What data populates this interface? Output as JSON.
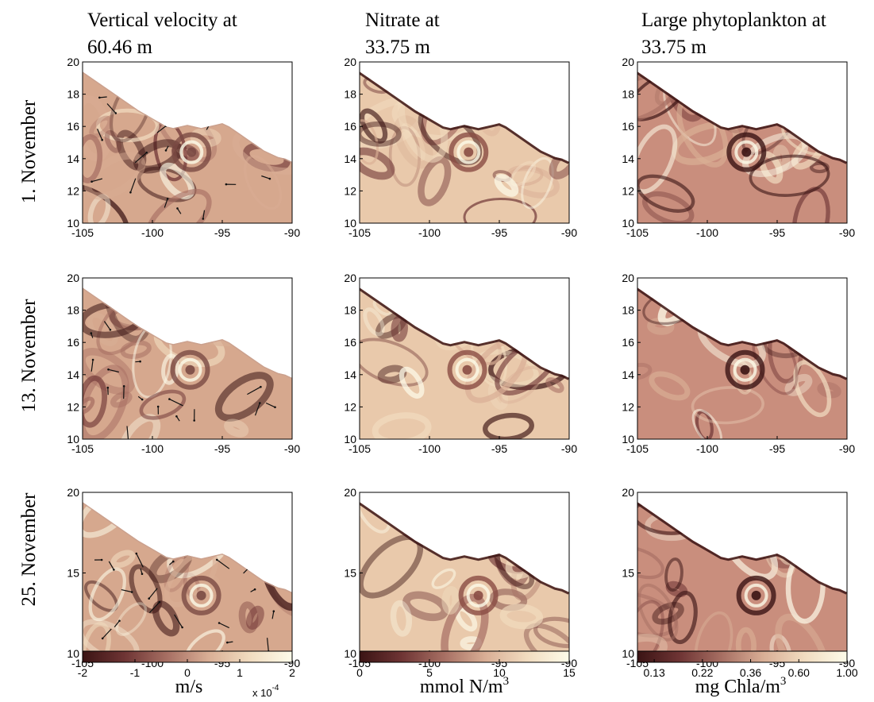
{
  "figure": {
    "columns": [
      {
        "title_line1": "Vertical velocity at",
        "title_line2": "60.46 m",
        "variable": "vertical_velocity",
        "depth_m": 60.46
      },
      {
        "title_line1": "Nitrate at",
        "title_line2": "33.75 m",
        "variable": "nitrate",
        "depth_m": 33.75
      },
      {
        "title_line1": "Large phytoplankton at",
        "title_line2": "33.75 m",
        "variable": "large_phytoplankton",
        "depth_m": 33.75
      }
    ],
    "rows": [
      "1. November",
      "13. November",
      "25. November"
    ],
    "colorbars": [
      {
        "label": "m/s",
        "ticks": [
          "-2",
          "-1",
          "0",
          "1",
          "2"
        ],
        "multiplier_base": "x 10",
        "multiplier_exp": "-4",
        "range": [
          -2,
          2
        ]
      },
      {
        "label_main": "mmol N/m",
        "label_sup": "3",
        "ticks": [
          "0",
          "5",
          "10",
          "15"
        ],
        "range": [
          0,
          15
        ]
      },
      {
        "label_main": "mg Chla/m",
        "label_sup": "3",
        "ticks": [
          "0.13",
          "0.22",
          "0.36",
          "0.60",
          "1.00"
        ],
        "scale": "log"
      }
    ],
    "colormap": [
      "#3b1414",
      "#6e3434",
      "#a66e62",
      "#d9ae95",
      "#f1dcc0",
      "#fdfbe9"
    ]
  },
  "chart_data": {
    "type": "heatmap",
    "panels": [
      {
        "row": "1. November",
        "column": "Vertical velocity at 60.46 m",
        "xlim": [
          -105,
          -90
        ],
        "ylim": [
          10,
          20
        ],
        "xticks": [
          -105,
          -100,
          -95,
          -90
        ],
        "yticks": [
          10,
          12,
          14,
          16,
          18,
          20
        ],
        "quiver": true
      },
      {
        "row": "1. November",
        "column": "Nitrate at 33.75 m",
        "xlim": [
          -105,
          -90
        ],
        "ylim": [
          10,
          20
        ],
        "xticks": [
          -105,
          -100,
          -95,
          -90
        ],
        "yticks": [
          10,
          12,
          14,
          16,
          18,
          20
        ]
      },
      {
        "row": "1. November",
        "column": "Large phytoplankton at 33.75 m",
        "xlim": [
          -105,
          -90
        ],
        "ylim": [
          10,
          20
        ],
        "xticks": [
          -105,
          -100,
          -95,
          -90
        ],
        "yticks": [
          10,
          12,
          14,
          16,
          18,
          20
        ]
      },
      {
        "row": "13. November",
        "column": "Vertical velocity at 60.46 m",
        "xlim": [
          -105,
          -90
        ],
        "ylim": [
          10,
          20
        ],
        "xticks": [
          -105,
          -100,
          -95,
          -90
        ],
        "yticks": [
          10,
          12,
          14,
          16,
          18,
          20
        ],
        "quiver": true
      },
      {
        "row": "13. November",
        "column": "Nitrate at 33.75 m",
        "xlim": [
          -105,
          -90
        ],
        "ylim": [
          10,
          20
        ],
        "xticks": [
          -105,
          -100,
          -95,
          -90
        ],
        "yticks": [
          10,
          12,
          14,
          16,
          18,
          20
        ]
      },
      {
        "row": "13. November",
        "column": "Large phytoplankton at 33.75 m",
        "xlim": [
          -105,
          -90
        ],
        "ylim": [
          10,
          20
        ],
        "xticks": [
          -105,
          -100,
          -95,
          -90
        ],
        "yticks": [
          10,
          12,
          14,
          16,
          18,
          20
        ]
      },
      {
        "row": "25. November",
        "column": "Vertical velocity at 60.46 m",
        "xlim": [
          -105,
          -90
        ],
        "ylim": [
          10,
          20
        ],
        "xticks": [
          -105,
          -100,
          -95,
          -90
        ],
        "yticks": [
          10,
          15,
          20
        ],
        "quiver": true
      },
      {
        "row": "25. November",
        "column": "Nitrate at 33.75 m",
        "xlim": [
          -105,
          -90
        ],
        "ylim": [
          10,
          20
        ],
        "xticks": [
          -105,
          -100,
          -95,
          -90
        ],
        "yticks": [
          10,
          15,
          20
        ]
      },
      {
        "row": "25. November",
        "column": "Large phytoplankton at 33.75 m",
        "xlim": [
          -105,
          -90
        ],
        "ylim": [
          10,
          20
        ],
        "xticks": [
          -105,
          -100,
          -95,
          -90
        ],
        "yticks": [
          10,
          15,
          20
        ]
      }
    ],
    "coastline": {
      "lon": [
        -105,
        -104,
        -103,
        -102,
        -101,
        -100,
        -99,
        -98.5,
        -98,
        -97.5,
        -97,
        -96.5,
        -96,
        -95.5,
        -95,
        -94.5,
        -94,
        -93.5,
        -93,
        -92.5,
        -92,
        -91.5,
        -91,
        -90.5,
        -90
      ],
      "lat": [
        19.4,
        18.8,
        18.2,
        17.6,
        17.0,
        16.5,
        16.0,
        15.9,
        16.0,
        16.1,
        16.0,
        15.9,
        16.0,
        16.1,
        16.2,
        16.0,
        15.7,
        15.4,
        15.1,
        14.8,
        14.5,
        14.3,
        14.1,
        14.0,
        13.8
      ]
    },
    "eddy_center": {
      "row1": [
        -97.2,
        14.4
      ],
      "row2": [
        -97.3,
        14.3
      ],
      "row3": [
        -96.5,
        13.6
      ]
    }
  }
}
